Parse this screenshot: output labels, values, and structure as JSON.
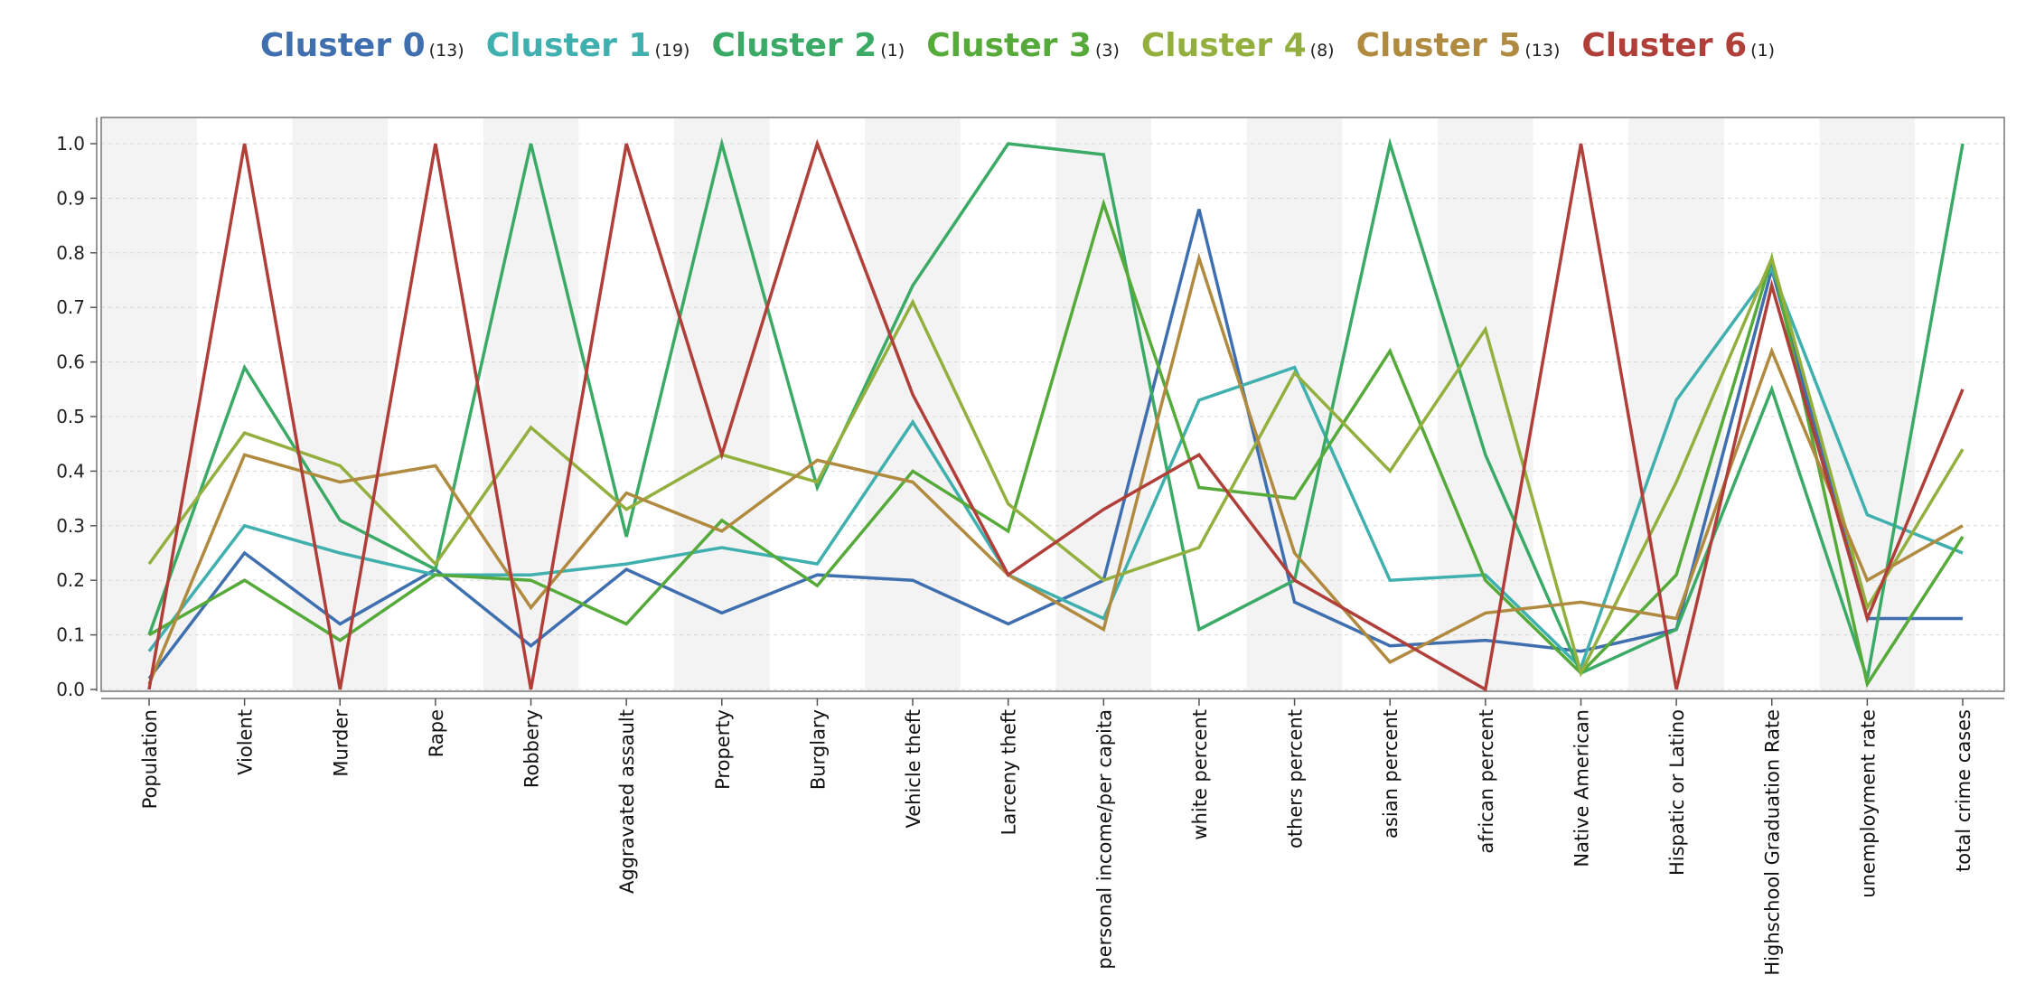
{
  "chart_data": {
    "type": "line",
    "title": "",
    "xlabel": "",
    "ylabel": "",
    "ylim": [
      0,
      1
    ],
    "yticks": [
      "0.0",
      "0.1",
      "0.2",
      "0.3",
      "0.4",
      "0.5",
      "0.6",
      "0.7",
      "0.8",
      "0.9",
      "1.0"
    ],
    "grid": true,
    "legend_position": "top-center",
    "categories": [
      "Population",
      "Violent",
      "Murder",
      "Rape",
      "Robbery",
      "Aggravated assault",
      "Property",
      "Burglary",
      "Vehicle theft",
      "Larceny theft",
      "personal income/per capita",
      "white percent",
      "others percent",
      "asian percent",
      "african percent",
      "Native American",
      "Hispatic or Latino",
      "Highschool Graduation Rate",
      "unemployment rate",
      "total crime cases"
    ],
    "series": [
      {
        "name": "Cluster 0",
        "count": "(13)",
        "color": "#3f6fae",
        "values": [
          0.02,
          0.25,
          0.12,
          0.22,
          0.08,
          0.22,
          0.14,
          0.21,
          0.2,
          0.12,
          0.2,
          0.88,
          0.16,
          0.08,
          0.09,
          0.07,
          0.11,
          0.77,
          0.13,
          0.13
        ]
      },
      {
        "name": "Cluster 1",
        "count": "(19)",
        "color": "#3fb0ae",
        "values": [
          0.07,
          0.3,
          0.25,
          0.21,
          0.21,
          0.23,
          0.26,
          0.23,
          0.49,
          0.21,
          0.13,
          0.53,
          0.59,
          0.2,
          0.21,
          0.04,
          0.53,
          0.77,
          0.32,
          0.25
        ]
      },
      {
        "name": "Cluster 2",
        "count": "(1)",
        "color": "#3aaa66",
        "values": [
          0.1,
          0.59,
          0.31,
          0.22,
          1.0,
          0.28,
          1.0,
          0.37,
          0.74,
          1.0,
          0.98,
          0.11,
          0.2,
          1.0,
          0.43,
          0.03,
          0.11,
          0.55,
          0.02,
          1.0
        ]
      },
      {
        "name": "Cluster 3",
        "count": "(3)",
        "color": "#55aa3a",
        "values": [
          0.1,
          0.2,
          0.09,
          0.21,
          0.2,
          0.12,
          0.31,
          0.19,
          0.4,
          0.29,
          0.89,
          0.37,
          0.35,
          0.62,
          0.2,
          0.03,
          0.21,
          0.79,
          0.01,
          0.28
        ]
      },
      {
        "name": "Cluster 4",
        "count": "(8)",
        "color": "#93b03f",
        "values": [
          0.23,
          0.47,
          0.41,
          0.23,
          0.48,
          0.33,
          0.43,
          0.38,
          0.71,
          0.34,
          0.2,
          0.26,
          0.58,
          0.4,
          0.66,
          0.03,
          0.38,
          0.79,
          0.15,
          0.44
        ]
      },
      {
        "name": "Cluster 5",
        "count": "(13)",
        "color": "#b08a3f",
        "values": [
          0.01,
          0.43,
          0.38,
          0.41,
          0.15,
          0.36,
          0.29,
          0.42,
          0.38,
          0.21,
          0.11,
          0.79,
          0.25,
          0.05,
          0.14,
          0.16,
          0.13,
          0.62,
          0.2,
          0.3
        ]
      },
      {
        "name": "Cluster 6",
        "count": "(1)",
        "color": "#b03f3a",
        "values": [
          0.0,
          1.0,
          0.0,
          1.0,
          0.0,
          1.0,
          0.43,
          1.0,
          0.54,
          0.21,
          0.33,
          0.43,
          0.2,
          0.1,
          0.0,
          1.0,
          0.0,
          0.74,
          0.13,
          0.55
        ]
      }
    ]
  }
}
